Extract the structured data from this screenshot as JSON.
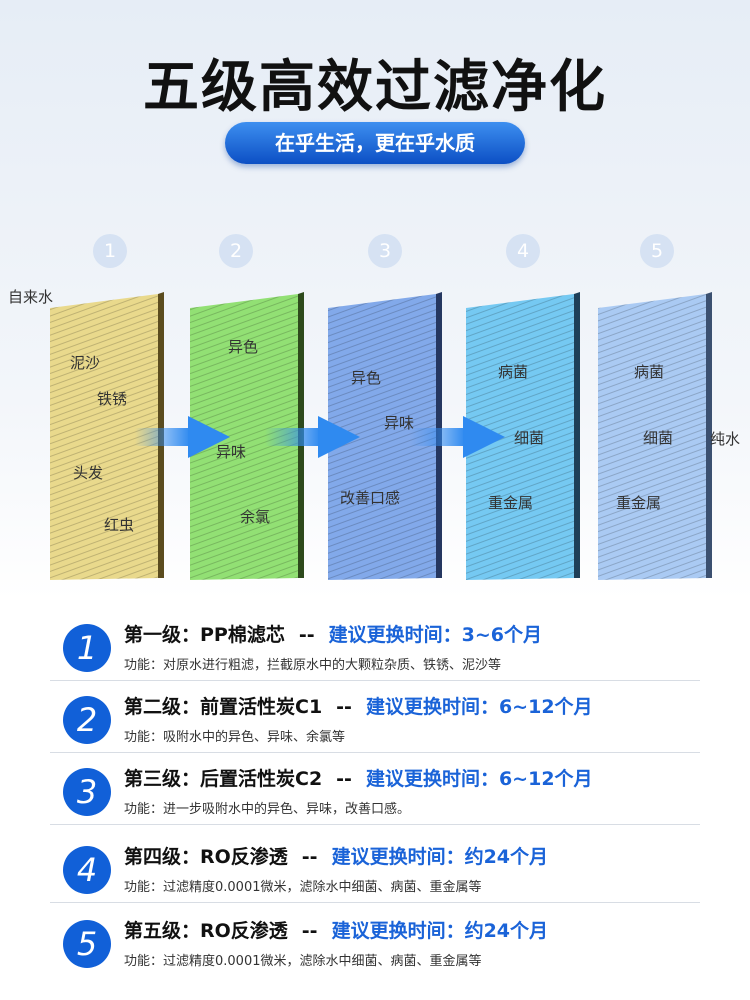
{
  "title": "五级高效过滤净化",
  "subtitle": "在乎生活，更在乎水质",
  "diagram": {
    "input_label": "自来水",
    "output_label": "纯水",
    "filters": [
      {
        "number": "1",
        "labels": [
          "泥沙",
          "铁锈",
          "头发",
          "红虫"
        ]
      },
      {
        "number": "2",
        "labels": [
          "异色",
          "异味",
          "余氯"
        ]
      },
      {
        "number": "3",
        "labels": [
          "异色",
          "异味",
          "改善口感"
        ]
      },
      {
        "number": "4",
        "labels": [
          "病菌",
          "细菌",
          "重金属"
        ]
      },
      {
        "number": "5",
        "labels": [
          "病菌",
          "细菌",
          "重金属"
        ]
      }
    ]
  },
  "stages": [
    {
      "number": "1",
      "name": "第一级：PP棉滤芯",
      "separator": "--",
      "replace": "建议更换时间：3~6个月",
      "function": "功能：对原水进行粗滤，拦截原水中的大颗粒杂质、铁锈、泥沙等"
    },
    {
      "number": "2",
      "name": "第二级：前置活性炭C1",
      "separator": "--",
      "replace": "建议更换时间：6~12个月",
      "function": "功能：吸附水中的异色、异味、余氯等"
    },
    {
      "number": "3",
      "name": "第三级：后置活性炭C2",
      "separator": "--",
      "replace": "建议更换时间：6~12个月",
      "function": "功能：进一步吸附水中的异色、异味，改善口感。"
    },
    {
      "number": "4",
      "name": "第四级：RO反渗透",
      "separator": "--",
      "replace": "建议更换时间：约24个月",
      "function": "功能：过滤精度0.0001微米，滤除水中细菌、病菌、重金属等"
    },
    {
      "number": "5",
      "name": "第五级：RO反渗透",
      "separator": "--",
      "replace": "建议更换时间：约24个月",
      "function": "功能：过滤精度0.0001微米，滤除水中细菌、病菌、重金属等"
    }
  ]
}
